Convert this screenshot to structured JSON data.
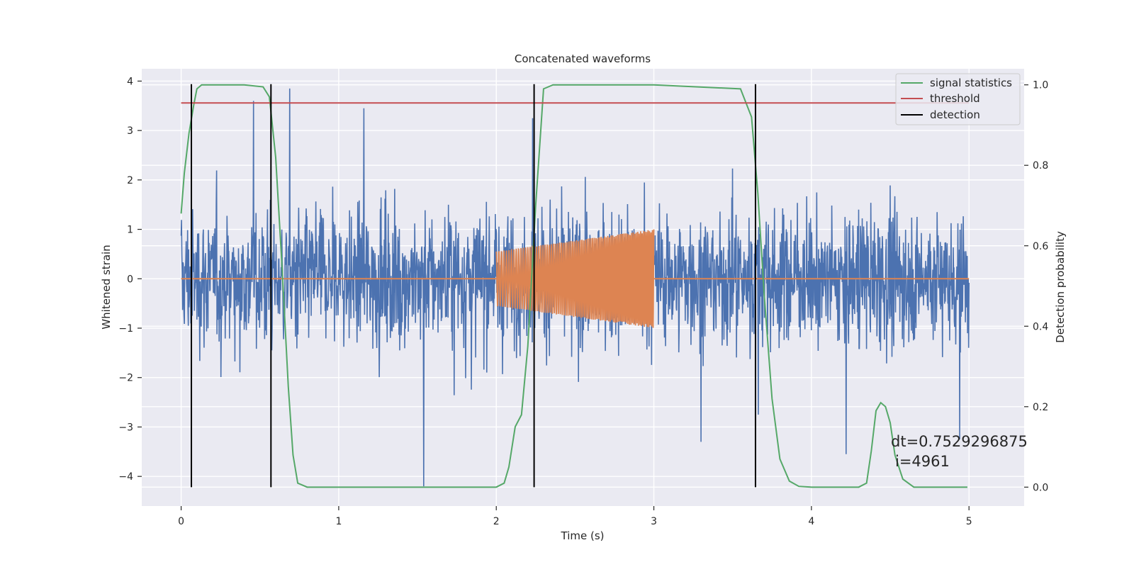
{
  "chart_data": {
    "type": "line",
    "title": "Concatenated waveforms",
    "xlabel": "Time (s)",
    "ylabel": "Whitened strain",
    "ylabel_right": "Detection probability",
    "xlim": [
      -0.25,
      5.35
    ],
    "ylim": [
      -4.6,
      4.25
    ],
    "ylim_right": [
      -0.047,
      1.04
    ],
    "x_ticks": [
      0,
      1,
      2,
      3,
      4,
      5
    ],
    "y_ticks": [
      -4,
      -3,
      -2,
      -1,
      0,
      1,
      2,
      3,
      4
    ],
    "y_ticks_right": [
      0.0,
      0.2,
      0.4,
      0.6,
      0.8,
      1.0
    ],
    "grid": true,
    "legend_position": "top-right",
    "legend": [
      {
        "label": "signal statistics",
        "color": "#55a868"
      },
      {
        "label": "threshold",
        "color": "#c44e52"
      },
      {
        "label": "detection",
        "color": "#000000"
      }
    ],
    "series": [
      {
        "kind": "noise",
        "axis": "left",
        "color": "#4c72b0",
        "x_range": [
          0,
          5
        ],
        "typical_amplitude": 2.2,
        "spikes": [
          {
            "x": 0.46,
            "y": 3.6
          },
          {
            "x": 0.69,
            "y": 3.85
          },
          {
            "x": 1.16,
            "y": 3.45
          },
          {
            "x": 1.54,
            "y": -4.2
          },
          {
            "x": 2.23,
            "y": 3.25
          },
          {
            "x": 3.3,
            "y": -3.3
          },
          {
            "x": 4.22,
            "y": -3.55
          },
          {
            "x": 4.94,
            "y": -3.25
          }
        ]
      },
      {
        "kind": "chirp",
        "axis": "left",
        "color": "#dd8452",
        "x_range": [
          2.0,
          3.0
        ],
        "amplitude_start": 0.55,
        "amplitude_end": 1.0,
        "baseline": 0
      },
      {
        "name": "signal statistics",
        "axis": "right",
        "color": "#55a868",
        "x": [
          0,
          0.02,
          0.05,
          0.08,
          0.1,
          0.13,
          0.2,
          0.4,
          0.52,
          0.56,
          0.6,
          0.64,
          0.68,
          0.71,
          0.74,
          0.8,
          1.0,
          1.5,
          2.0,
          2.05,
          2.08,
          2.12,
          2.16,
          2.2,
          2.25,
          2.3,
          2.36,
          2.5,
          3.0,
          3.55,
          3.62,
          3.66,
          3.7,
          3.75,
          3.8,
          3.86,
          3.92,
          4.0,
          4.3,
          4.35,
          4.38,
          4.41,
          4.44,
          4.47,
          4.5,
          4.53,
          4.58,
          4.65,
          4.8,
          4.99
        ],
        "y": [
          0.68,
          0.78,
          0.88,
          0.95,
          0.99,
          1.0,
          1.0,
          1.0,
          0.995,
          0.97,
          0.82,
          0.55,
          0.25,
          0.08,
          0.01,
          0.0,
          0.0,
          0.0,
          0.0,
          0.01,
          0.05,
          0.15,
          0.18,
          0.35,
          0.7,
          0.99,
          1.0,
          1.0,
          1.0,
          0.99,
          0.92,
          0.73,
          0.48,
          0.22,
          0.07,
          0.015,
          0.002,
          0.0,
          0.0,
          0.01,
          0.09,
          0.19,
          0.21,
          0.2,
          0.16,
          0.08,
          0.02,
          0.0,
          0.0,
          0.0
        ]
      },
      {
        "name": "threshold",
        "axis": "right",
        "color": "#c44e52",
        "x": [
          0,
          5
        ],
        "y": [
          0.955,
          0.955
        ]
      }
    ],
    "detections": [
      0.065,
      0.57,
      2.24,
      3.645
    ],
    "annotation": {
      "line1": "dt=0.7529296875",
      "line2": "i=4961",
      "x": 4.5,
      "y_right": 0.12
    }
  }
}
